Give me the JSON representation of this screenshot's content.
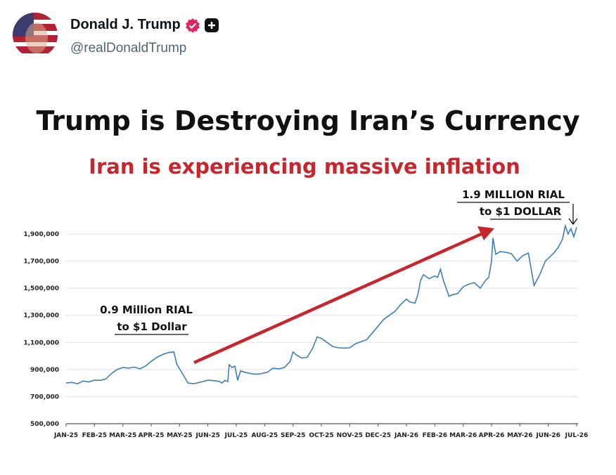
{
  "post": {
    "display_name": "Donald J. Trump",
    "handle": "@realDonaldTrump",
    "verified_icon": "verified-badge-icon",
    "plus_icon": "plus-icon",
    "accent": "#e0245e"
  },
  "chart_data": {
    "type": "line",
    "title": "Trump is Destroying Iran’s Currency",
    "subtitle": "Iran is experiencing massive inflation",
    "xlabel": "",
    "ylabel": "",
    "x_ticks": [
      "JAN-25",
      "FEB-25",
      "MAR-25",
      "APR-25",
      "MAY-25",
      "JUN-25",
      "JUL-25",
      "AUG-25",
      "SEP-25",
      "OCT-25",
      "NOV-25",
      "DEC-25",
      "JAN-26",
      "FEB-26",
      "MAR-26",
      "APR-26",
      "MAY-26",
      "JUN-26",
      "JUL-26"
    ],
    "y_ticks": [
      "500,000",
      "700,000",
      "900,000",
      "1,100,000",
      "1,300,000",
      "1,500,000",
      "1,700,000",
      "1,900,000"
    ],
    "ylim": [
      500000,
      2000000
    ],
    "grid": true,
    "line_color": "#3e7fb5",
    "arrow_color": "#c8262c",
    "annotations": [
      {
        "name": "left",
        "line1": "0.9 Million RIAL",
        "line2": "to $1 Dollar"
      },
      {
        "name": "right",
        "line1": "1.9 MILLION RIAL",
        "line2": "to $1 DOLLAR"
      }
    ],
    "series": [
      {
        "points": [
          [
            0,
            800000
          ],
          [
            0.2,
            805000
          ],
          [
            0.4,
            795000
          ],
          [
            0.6,
            815000
          ],
          [
            0.8,
            808000
          ],
          [
            1.0,
            822000
          ],
          [
            1.2,
            820000
          ],
          [
            1.4,
            830000
          ],
          [
            1.6,
            870000
          ],
          [
            1.8,
            900000
          ],
          [
            2.0,
            915000
          ],
          [
            2.2,
            910000
          ],
          [
            2.4,
            918000
          ],
          [
            2.6,
            905000
          ],
          [
            2.8,
            925000
          ],
          [
            3.0,
            960000
          ],
          [
            3.2,
            990000
          ],
          [
            3.4,
            1010000
          ],
          [
            3.6,
            1025000
          ],
          [
            3.8,
            1030000
          ],
          [
            3.9,
            940000
          ],
          [
            4.1,
            870000
          ],
          [
            4.3,
            800000
          ],
          [
            4.5,
            795000
          ],
          [
            4.7,
            805000
          ],
          [
            4.9,
            815000
          ],
          [
            5.0,
            822000
          ],
          [
            5.2,
            818000
          ],
          [
            5.4,
            812000
          ],
          [
            5.5,
            800000
          ],
          [
            5.6,
            820000
          ],
          [
            5.7,
            810000
          ],
          [
            5.75,
            935000
          ],
          [
            5.85,
            915000
          ],
          [
            5.95,
            925000
          ],
          [
            6.05,
            820000
          ],
          [
            6.15,
            890000
          ],
          [
            6.3,
            880000
          ],
          [
            6.5,
            870000
          ],
          [
            6.7,
            865000
          ],
          [
            6.9,
            870000
          ],
          [
            7.1,
            880000
          ],
          [
            7.3,
            910000
          ],
          [
            7.5,
            905000
          ],
          [
            7.7,
            915000
          ],
          [
            7.9,
            960000
          ],
          [
            8.0,
            1030000
          ],
          [
            8.1,
            1010000
          ],
          [
            8.3,
            985000
          ],
          [
            8.5,
            990000
          ],
          [
            8.7,
            1060000
          ],
          [
            8.85,
            1140000
          ],
          [
            9.0,
            1130000
          ],
          [
            9.2,
            1100000
          ],
          [
            9.4,
            1070000
          ],
          [
            9.6,
            1060000
          ],
          [
            9.8,
            1058000
          ],
          [
            10.0,
            1060000
          ],
          [
            10.2,
            1090000
          ],
          [
            10.4,
            1105000
          ],
          [
            10.6,
            1120000
          ],
          [
            10.8,
            1170000
          ],
          [
            11.0,
            1220000
          ],
          [
            11.2,
            1270000
          ],
          [
            11.4,
            1300000
          ],
          [
            11.6,
            1330000
          ],
          [
            11.8,
            1380000
          ],
          [
            12.0,
            1420000
          ],
          [
            12.1,
            1400000
          ],
          [
            12.3,
            1390000
          ],
          [
            12.4,
            1450000
          ],
          [
            12.5,
            1560000
          ],
          [
            12.6,
            1600000
          ],
          [
            12.8,
            1570000
          ],
          [
            13.0,
            1590000
          ],
          [
            13.1,
            1580000
          ],
          [
            13.2,
            1640000
          ],
          [
            13.3,
            1560000
          ],
          [
            13.5,
            1440000
          ],
          [
            13.6,
            1450000
          ],
          [
            13.8,
            1460000
          ],
          [
            14.0,
            1510000
          ],
          [
            14.2,
            1530000
          ],
          [
            14.4,
            1540000
          ],
          [
            14.6,
            1500000
          ],
          [
            14.8,
            1560000
          ],
          [
            14.9,
            1580000
          ],
          [
            15.0,
            1700000
          ],
          [
            15.05,
            1870000
          ],
          [
            15.15,
            1750000
          ],
          [
            15.3,
            1770000
          ],
          [
            15.5,
            1765000
          ],
          [
            15.7,
            1755000
          ],
          [
            15.9,
            1700000
          ],
          [
            16.1,
            1740000
          ],
          [
            16.3,
            1760000
          ],
          [
            16.5,
            1520000
          ],
          [
            16.7,
            1600000
          ],
          [
            16.9,
            1700000
          ],
          [
            17.0,
            1720000
          ],
          [
            17.2,
            1760000
          ],
          [
            17.35,
            1800000
          ],
          [
            17.5,
            1860000
          ],
          [
            17.6,
            1960000
          ],
          [
            17.7,
            1900000
          ],
          [
            17.8,
            1940000
          ],
          [
            17.9,
            1880000
          ],
          [
            18.0,
            1950000
          ]
        ]
      }
    ]
  }
}
